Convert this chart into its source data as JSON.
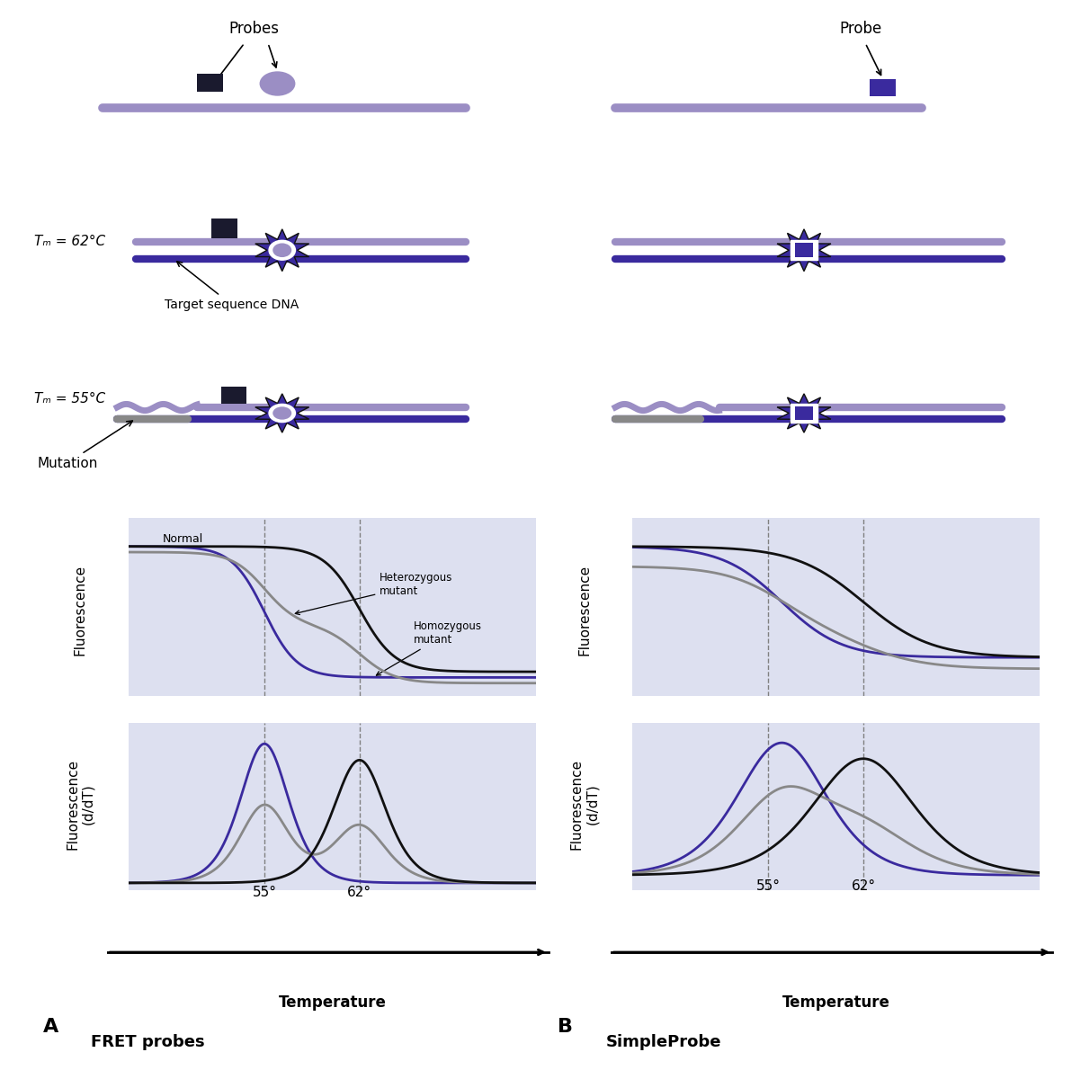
{
  "bg_color": "#ffffff",
  "panel_bg": "#dde0f0",
  "dna_light_color": "#9b8ec4",
  "dna_dark_color": "#3a2a9e",
  "probe_square_dark": "#1a1a2e",
  "probe_circle_color": "#9b8ec4",
  "probe_square_b_color": "#3a2a9e",
  "burst_color": "#3a2a9e",
  "burst_edge": "#111111",
  "gray_color": "#808080",
  "mutation_color": "#888888",
  "normal_color": "#111111",
  "hetero_color": "#888888",
  "homo_color": "#3a2a9e",
  "arrow_color_A": "#333333",
  "arrow_color_B": "#888888",
  "title_A": "FRET probes",
  "title_B": "SimpleProbe",
  "label_A": "A",
  "label_B": "B",
  "probes_label": "Probes",
  "probe_label": "Probe",
  "target_label": "Target sequence DNA",
  "mutation_label": "Mutation",
  "normal_label": "Normal",
  "hetero_label": "Heterozygous\nmutant",
  "homo_label": "Homozygous\nmutant",
  "temp_label": "Temperature",
  "fluor_label": "Fluorescence",
  "fluor_ddt_label": "Fluorescence\n(d/dT)",
  "t55_label": "55°",
  "t62_label": "62°",
  "tm62_label": "Tₘ = 62°C",
  "tm55_label": "Tₘ = 55°C"
}
